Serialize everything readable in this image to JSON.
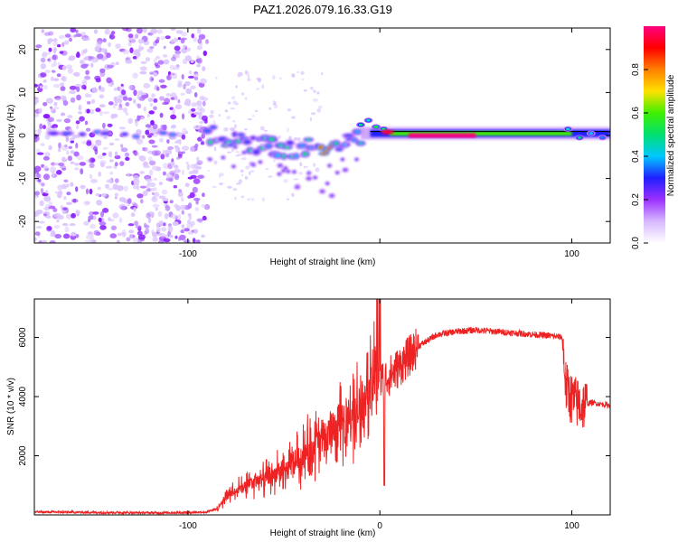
{
  "title": "PAZ1.2026.079.16.33.G19",
  "colors": {
    "snr_line": "#ee2222",
    "colormap": [
      "#ffffff",
      "#d7b8ff",
      "#9b30ff",
      "#2020ff",
      "#00c8ff",
      "#00e070",
      "#40f000",
      "#ffe000",
      "#ff8000",
      "#ff0000",
      "#ff0080"
    ]
  },
  "chart_data": [
    {
      "type": "heatmap",
      "name": "spectrogram",
      "xlabel": "Height of straight line (km)",
      "ylabel": "Frequency (Hz)",
      "xlim": [
        -180,
        120
      ],
      "ylim": [
        -25,
        25
      ],
      "xticks": [
        -100,
        0,
        100
      ],
      "xtick_labels": [
        "-100",
        "",
        "100"
      ],
      "yticks": [
        -20,
        -10,
        0,
        10,
        20
      ],
      "ytick_labels": [
        "-20",
        "-10",
        "0",
        "10",
        "20"
      ],
      "colorbar": {
        "label": "Normalized spectral amplitude",
        "range": [
          0,
          1
        ],
        "ticks": [
          0.0,
          0.2,
          0.4,
          0.6,
          0.8
        ],
        "tick_labels": [
          "0.0",
          "0.2",
          "0.4",
          "0.6",
          "0.8"
        ]
      },
      "features": [
        {
          "region": "noise",
          "x_range": [
            -180,
            -90
          ],
          "freq_range": [
            -25,
            25
          ],
          "amplitude": 0.08
        },
        {
          "region": "fragmented carrier",
          "x_range": [
            -90,
            -10
          ],
          "freq_center": [
            0.5,
            -3
          ],
          "amplitude": 0.25
        },
        {
          "region": "carrier",
          "x_range": [
            -10,
            120
          ],
          "freq_center": [
            0.5,
            0.5
          ],
          "amplitude": 0.6
        },
        {
          "region": "peak",
          "x_range": [
            15,
            50
          ],
          "freq_center": [
            0,
            0
          ],
          "amplitude": 1.0
        }
      ]
    },
    {
      "type": "line",
      "name": "snr",
      "xlabel": "Height of straight line (km)",
      "ylabel": "SNR (10 * v/v)",
      "xlim": [
        -180,
        120
      ],
      "ylim": [
        0,
        7300
      ],
      "xticks": [
        -100,
        0,
        100
      ],
      "xtick_labels": [
        "-100",
        "0",
        "100"
      ],
      "yticks": [
        2000,
        4000,
        6000
      ],
      "ytick_labels": [
        "2000",
        "4000",
        "6000"
      ],
      "series": [
        {
          "name": "SNR",
          "x": [
            -180,
            -160,
            -140,
            -120,
            -100,
            -90,
            -85,
            -80,
            -70,
            -60,
            -50,
            -40,
            -30,
            -20,
            -10,
            -5,
            0,
            5,
            10,
            20,
            30,
            40,
            50,
            60,
            70,
            80,
            90,
            95,
            97,
            100,
            105,
            110,
            120
          ],
          "values": [
            100,
            90,
            80,
            70,
            80,
            100,
            200,
            600,
            1000,
            1200,
            1500,
            2000,
            2600,
            3000,
            3600,
            4300,
            4500,
            4700,
            5000,
            5700,
            6100,
            6200,
            6250,
            6200,
            6150,
            6100,
            6050,
            6000,
            4300,
            3900,
            3700,
            3800,
            3700
          ]
        }
      ]
    }
  ]
}
